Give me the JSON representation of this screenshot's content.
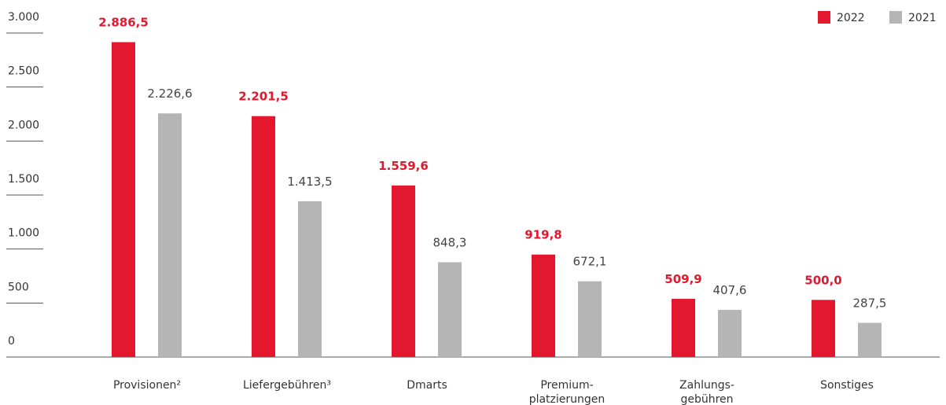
{
  "chart_data": {
    "type": "bar",
    "categories": [
      [
        "Provisionen²"
      ],
      [
        "Liefergebühren³"
      ],
      [
        "Dmarts"
      ],
      [
        "Premium-",
        "platzierungen"
      ],
      [
        "Zahlungs-",
        "gebühren"
      ],
      [
        "Sonstiges"
      ]
    ],
    "series": [
      {
        "name": "2022",
        "color": "#e3172d",
        "values": [
          2886.5,
          2201.5,
          1559.6,
          919.8,
          509.9,
          500.0
        ],
        "value_labels": [
          "2.886,5",
          "2.201,5",
          "1.559,6",
          "919,8",
          "509,9",
          "500,0"
        ]
      },
      {
        "name": "2021",
        "color": "#b5b5b5",
        "values": [
          2226.6,
          1413.5,
          848.3,
          672.1,
          407.6,
          287.5
        ],
        "value_labels": [
          "2.226,6",
          "1.413,5",
          "848,3",
          "672,1",
          "407,6",
          "287,5"
        ]
      }
    ],
    "ylim": [
      0,
      3000
    ],
    "yticks": [
      0,
      500,
      {
        "value": 1000,
        "label": "1.000"
      },
      {
        "value": 1500,
        "label": "1.500"
      },
      {
        "value": 2000,
        "label": "2.000"
      },
      {
        "value": 2500,
        "label": "2.500"
      },
      {
        "value": 3000,
        "label": "3.000"
      }
    ],
    "legend": "top-right"
  }
}
